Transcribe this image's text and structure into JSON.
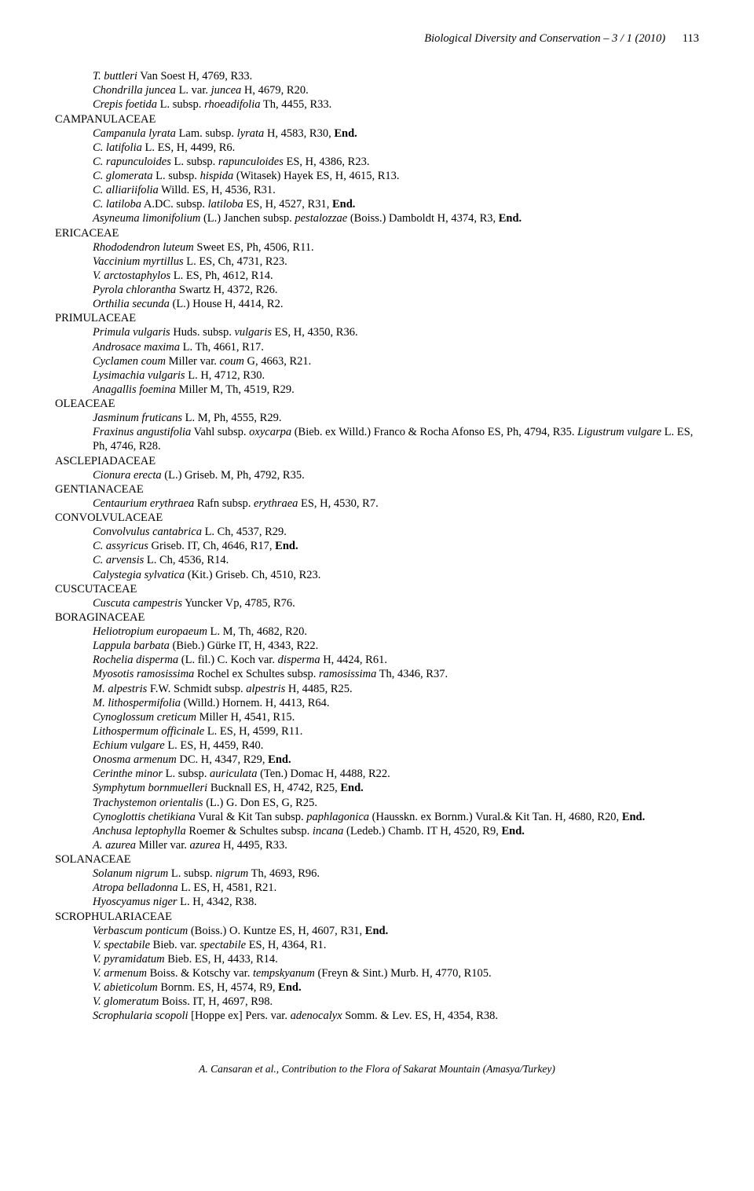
{
  "header": {
    "journal": "Biological Diversity and Conservation – 3 / 1 (2010)",
    "page_number": "113"
  },
  "content": [
    {
      "type": "species",
      "segs": [
        {
          "i": true,
          "t": "T. buttleri"
        },
        {
          "t": " Van Soest H, 4769, R33."
        }
      ]
    },
    {
      "type": "species",
      "segs": [
        {
          "i": true,
          "t": "Chondrilla juncea"
        },
        {
          "t": " L. var. "
        },
        {
          "i": true,
          "t": "juncea"
        },
        {
          "t": " H, 4679, R20."
        }
      ]
    },
    {
      "type": "species",
      "segs": [
        {
          "i": true,
          "t": "Crepis foetida"
        },
        {
          "t": " L. subsp. "
        },
        {
          "i": true,
          "t": "rhoeadifolia"
        },
        {
          "t": " Th, 4455, R33."
        }
      ]
    },
    {
      "type": "family",
      "segs": [
        {
          "t": "CAMPANULACEAE"
        }
      ]
    },
    {
      "type": "species",
      "segs": [
        {
          "i": true,
          "t": "Campanula lyrata"
        },
        {
          "t": " Lam. subsp. "
        },
        {
          "i": true,
          "t": "lyrata"
        },
        {
          "t": " H, 4583, R30, "
        },
        {
          "b": true,
          "t": "End."
        }
      ]
    },
    {
      "type": "species",
      "segs": [
        {
          "i": true,
          "t": "C. latifolia"
        },
        {
          "t": " L. ES, H, 4499, R6."
        }
      ]
    },
    {
      "type": "species",
      "segs": [
        {
          "i": true,
          "t": "C. rapunculoides"
        },
        {
          "t": " L. subsp. "
        },
        {
          "i": true,
          "t": "rapunculoides"
        },
        {
          "t": " ES, H, 4386, R23."
        }
      ]
    },
    {
      "type": "species",
      "segs": [
        {
          "i": true,
          "t": "C. glomerata"
        },
        {
          "t": " L. subsp. "
        },
        {
          "i": true,
          "t": "hispida"
        },
        {
          "t": " (Witasek) Hayek ES, H, 4615, R13."
        }
      ]
    },
    {
      "type": "species",
      "segs": [
        {
          "i": true,
          "t": "C. alliariifolia"
        },
        {
          "t": " Willd. ES, H, 4536, R31."
        }
      ]
    },
    {
      "type": "species",
      "segs": [
        {
          "i": true,
          "t": "C. latiloba"
        },
        {
          "t": " A.DC. subsp. "
        },
        {
          "i": true,
          "t": "latiloba"
        },
        {
          "t": " ES, H, 4527, R31,  "
        },
        {
          "b": true,
          "t": "End."
        }
      ]
    },
    {
      "type": "species",
      "segs": [
        {
          "i": true,
          "t": "Asyneuma limonifolium"
        },
        {
          "t": " (L.) Janchen subsp. "
        },
        {
          "i": true,
          "t": "pestalozzae"
        },
        {
          "t": " (Boiss.) Damboldt H, 4374, R3, "
        },
        {
          "b": true,
          "t": "End."
        }
      ]
    },
    {
      "type": "family",
      "segs": [
        {
          "t": "ERICACEAE"
        }
      ]
    },
    {
      "type": "species",
      "segs": [
        {
          "i": true,
          "t": "Rhododendron luteum"
        },
        {
          "t": " Sweet ES, Ph, 4506, R11."
        }
      ]
    },
    {
      "type": "species",
      "segs": [
        {
          "i": true,
          "t": "Vaccinium myrtillus"
        },
        {
          "t": " L. ES, Ch, 4731, R23."
        }
      ]
    },
    {
      "type": "species",
      "segs": [
        {
          "i": true,
          "t": "V. arctostaphylos"
        },
        {
          "t": " L. ES, Ph, 4612, R14."
        }
      ]
    },
    {
      "type": "species",
      "segs": [
        {
          "i": true,
          "t": "Pyrola chlorantha"
        },
        {
          "t": " Swartz H, 4372, R26."
        }
      ]
    },
    {
      "type": "species",
      "segs": [
        {
          "i": true,
          "t": "Orthilia secunda"
        },
        {
          "t": " (L.) House H, 4414, R2."
        }
      ]
    },
    {
      "type": "family",
      "segs": [
        {
          "t": "PRIMULACEAE"
        }
      ]
    },
    {
      "type": "species",
      "segs": [
        {
          "i": true,
          "t": "Primula vulgaris"
        },
        {
          "t": " Huds. subsp. "
        },
        {
          "i": true,
          "t": "vulgaris"
        },
        {
          "t": " ES, H, 4350, R36."
        }
      ]
    },
    {
      "type": "species",
      "segs": [
        {
          "i": true,
          "t": "Androsace maxima"
        },
        {
          "t": " L. Th, 4661, R17."
        }
      ]
    },
    {
      "type": "species",
      "segs": [
        {
          "i": true,
          "t": "Cyclamen coum"
        },
        {
          "t": " Miller var. "
        },
        {
          "i": true,
          "t": "coum"
        },
        {
          "t": " G, 4663, R21."
        }
      ]
    },
    {
      "type": "species",
      "segs": [
        {
          "i": true,
          "t": "Lysimachia vulgaris"
        },
        {
          "t": " L. H, 4712, R30."
        }
      ]
    },
    {
      "type": "species",
      "segs": [
        {
          "i": true,
          "t": "Anagallis foemina"
        },
        {
          "t": " Miller M, Th, 4519, R29."
        }
      ]
    },
    {
      "type": "family",
      "segs": [
        {
          "t": "OLEACEAE"
        }
      ]
    },
    {
      "type": "species",
      "segs": [
        {
          "i": true,
          "t": "Jasminum fruticans"
        },
        {
          "t": " L. M, Ph, 4555, R29."
        }
      ]
    },
    {
      "type": "species",
      "segs": [
        {
          "i": true,
          "t": "Fraxinus angustifolia"
        },
        {
          "t": " Vahl subsp. "
        },
        {
          "i": true,
          "t": "oxycarpa"
        },
        {
          "t": " (Bieb. ex Willd.) Franco & Rocha Afonso ES, Ph, 4794, R35. "
        },
        {
          "i": true,
          "t": "Ligustrum vulgare"
        },
        {
          "t": " L. ES, Ph, 4746, R28."
        }
      ]
    },
    {
      "type": "family",
      "segs": [
        {
          "t": "ASCLEPIADACEAE"
        }
      ]
    },
    {
      "type": "species",
      "segs": [
        {
          "i": true,
          "t": "Cionura erecta"
        },
        {
          "t": " (L.) Griseb. M, Ph, 4792, R35."
        }
      ]
    },
    {
      "type": "family",
      "segs": [
        {
          "t": "GENTIANACEAE"
        }
      ]
    },
    {
      "type": "species",
      "segs": [
        {
          "i": true,
          "t": "Centaurium erythraea"
        },
        {
          "t": " Rafn subsp. "
        },
        {
          "i": true,
          "t": "erythraea"
        },
        {
          "t": " ES, H, 4530, R7."
        }
      ]
    },
    {
      "type": "family",
      "segs": [
        {
          "t": "CONVOLVULACEAE"
        }
      ]
    },
    {
      "type": "species",
      "segs": [
        {
          "i": true,
          "t": "Convolvulus cantabrica"
        },
        {
          "t": " L. Ch, 4537, R29."
        }
      ]
    },
    {
      "type": "species",
      "segs": [
        {
          "i": true,
          "t": "C. assyricus"
        },
        {
          "t": " Griseb. IT, Ch, 4646, R17, "
        },
        {
          "b": true,
          "t": "End."
        }
      ]
    },
    {
      "type": "species",
      "segs": [
        {
          "i": true,
          "t": "C. arvensis"
        },
        {
          "t": " L. Ch, 4536, R14."
        }
      ]
    },
    {
      "type": "species",
      "segs": [
        {
          "i": true,
          "t": "Calystegia sylvatica"
        },
        {
          "t": " (Kit.) Griseb. Ch, 4510, R23."
        }
      ]
    },
    {
      "type": "family",
      "segs": [
        {
          "t": "CUSCUTACEAE"
        }
      ]
    },
    {
      "type": "species",
      "segs": [
        {
          "i": true,
          "t": "Cuscuta campestris"
        },
        {
          "t": " Yuncker Vp, 4785, R76."
        }
      ]
    },
    {
      "type": "family",
      "segs": [
        {
          "t": "BORAGINACEAE"
        }
      ]
    },
    {
      "type": "species",
      "segs": [
        {
          "i": true,
          "t": "Heliotropium europaeum"
        },
        {
          "t": " L. M, Th, 4682, R20."
        }
      ]
    },
    {
      "type": "species",
      "segs": [
        {
          "i": true,
          "t": "Lappula barbata"
        },
        {
          "t": " (Bieb.) Gürke IT, H, 4343, R22."
        }
      ]
    },
    {
      "type": "species",
      "segs": [
        {
          "i": true,
          "t": "Rochelia disperma"
        },
        {
          "t": " (L. fil.) C. Koch var. "
        },
        {
          "i": true,
          "t": "disperma"
        },
        {
          "t": " H, 4424, R61."
        }
      ]
    },
    {
      "type": "species",
      "segs": [
        {
          "i": true,
          "t": "Myosotis ramosissima"
        },
        {
          "t": " Rochel ex Schultes subsp. "
        },
        {
          "i": true,
          "t": "ramosissima"
        },
        {
          "t": " Th, 4346, R37."
        }
      ]
    },
    {
      "type": "species",
      "segs": [
        {
          "i": true,
          "t": "M. alpestris"
        },
        {
          "t": " F.W. Schmidt subsp. "
        },
        {
          "i": true,
          "t": "alpestris"
        },
        {
          "t": " H, 4485, R25."
        }
      ]
    },
    {
      "type": "species",
      "segs": [
        {
          "i": true,
          "t": "M. lithospermifolia "
        },
        {
          "t": " (Willd.) Hornem. H, 4413, R64."
        }
      ]
    },
    {
      "type": "species",
      "segs": [
        {
          "i": true,
          "t": "Cynoglossum creticum"
        },
        {
          "t": " Miller H, 4541, R15."
        }
      ]
    },
    {
      "type": "species",
      "segs": [
        {
          "i": true,
          "t": "Lithospermum officinale"
        },
        {
          "t": " L. ES, H, 4599, R11."
        }
      ]
    },
    {
      "type": "species",
      "segs": [
        {
          "i": true,
          "t": "Echium vulgare"
        },
        {
          "t": " L. ES, H, 4459, R40."
        }
      ]
    },
    {
      "type": "species",
      "segs": [
        {
          "i": true,
          "t": "Onosma armenum"
        },
        {
          "t": " DC. H, 4347, R29, "
        },
        {
          "b": true,
          "t": "End."
        }
      ]
    },
    {
      "type": "species",
      "segs": [
        {
          "i": true,
          "t": "Cerinthe minor"
        },
        {
          "t": " L. subsp. "
        },
        {
          "i": true,
          "t": "auriculata"
        },
        {
          "t": " (Ten.) Domac H, 4488, R22."
        }
      ]
    },
    {
      "type": "species",
      "segs": [
        {
          "i": true,
          "t": "Symphytum bornmuelleri "
        },
        {
          "t": " Bucknall ES, H, 4742, R25, "
        },
        {
          "b": true,
          "t": "End."
        }
      ]
    },
    {
      "type": "species",
      "segs": [
        {
          "i": true,
          "t": "Trachystemon orientalis"
        },
        {
          "t": " (L.) G. Don ES, G, R25."
        }
      ]
    },
    {
      "type": "species",
      "segs": [
        {
          "i": true,
          "t": "Cynoglottis chetikiana"
        },
        {
          "t": " Vural & Kit Tan subsp. "
        },
        {
          "i": true,
          "t": "paphlagonica"
        },
        {
          "t": " (Hausskn. ex Bornm.) Vural.& Kit Tan. H, 4680, R20, "
        },
        {
          "b": true,
          "t": "End."
        }
      ]
    },
    {
      "type": "species",
      "segs": [
        {
          "i": true,
          "t": "Anchusa leptophylla"
        },
        {
          "t": " Roemer & Schultes subsp. "
        },
        {
          "i": true,
          "t": "incana"
        },
        {
          "t": " (Ledeb.) Chamb. IT H, 4520, R9, "
        },
        {
          "b": true,
          "t": "End."
        }
      ]
    },
    {
      "type": "species",
      "segs": [
        {
          "i": true,
          "t": "A. azurea"
        },
        {
          "t": " Miller var. "
        },
        {
          "i": true,
          "t": "azurea"
        },
        {
          "t": " H, 4495, R33."
        }
      ]
    },
    {
      "type": "family",
      "segs": [
        {
          "t": "SOLANACEAE"
        }
      ]
    },
    {
      "type": "species",
      "segs": [
        {
          "i": true,
          "t": "Solanum nigrum"
        },
        {
          "t": " L. subsp. "
        },
        {
          "i": true,
          "t": "nigrum"
        },
        {
          "t": " Th, 4693, R96."
        }
      ]
    },
    {
      "type": "species",
      "segs": [
        {
          "i": true,
          "t": "Atropa belladonna"
        },
        {
          "t": " L. ES, H, 4581, R21."
        }
      ]
    },
    {
      "type": "species",
      "segs": [
        {
          "i": true,
          "t": "Hyoscyamus niger"
        },
        {
          "t": " L. H, 4342, R38."
        }
      ]
    },
    {
      "type": "family",
      "segs": [
        {
          "t": "SCROPHULARIACEAE"
        }
      ]
    },
    {
      "type": "species",
      "segs": [
        {
          "i": true,
          "t": "Verbascum ponticum"
        },
        {
          "t": " (Boiss.) O. Kuntze ES, H, 4607, R31, "
        },
        {
          "b": true,
          "t": "End."
        }
      ]
    },
    {
      "type": "species",
      "segs": [
        {
          "i": true,
          "t": "V. spectabile"
        },
        {
          "t": " Bieb. var. "
        },
        {
          "i": true,
          "t": "spectabile"
        },
        {
          "t": " ES, H, 4364, R1."
        }
      ]
    },
    {
      "type": "species",
      "segs": [
        {
          "i": true,
          "t": "V. pyramidatum"
        },
        {
          "t": " Bieb. ES, H, 4433, R14."
        }
      ]
    },
    {
      "type": "species",
      "segs": [
        {
          "i": true,
          "t": "V. armenum"
        },
        {
          "t": " Boiss. & Kotschy var. "
        },
        {
          "i": true,
          "t": "tempskyanum"
        },
        {
          "t": " (Freyn & Sint.) Murb. H, 4770, R105."
        }
      ]
    },
    {
      "type": "species",
      "segs": [
        {
          "i": true,
          "t": "V. abieticolum"
        },
        {
          "t": " Bornm. ES, H, 4574, R9, "
        },
        {
          "b": true,
          "t": "End."
        }
      ]
    },
    {
      "type": "species",
      "segs": [
        {
          "i": true,
          "t": "V. glomeratum"
        },
        {
          "t": " Boiss. IT, H, 4697, R98."
        }
      ]
    },
    {
      "type": "species",
      "segs": [
        {
          "i": true,
          "t": "Scrophularia scopoli"
        },
        {
          "t": " [Hoppe ex] Pers. var. "
        },
        {
          "i": true,
          "t": "adenocalyx"
        },
        {
          "t": " Somm. & Lev. ES, H, 4354, R38."
        }
      ]
    }
  ],
  "footer": {
    "text": "A. Cansaran et al., Contribution to the Flora of Sakarat Mountain (Amasya/Turkey)"
  }
}
